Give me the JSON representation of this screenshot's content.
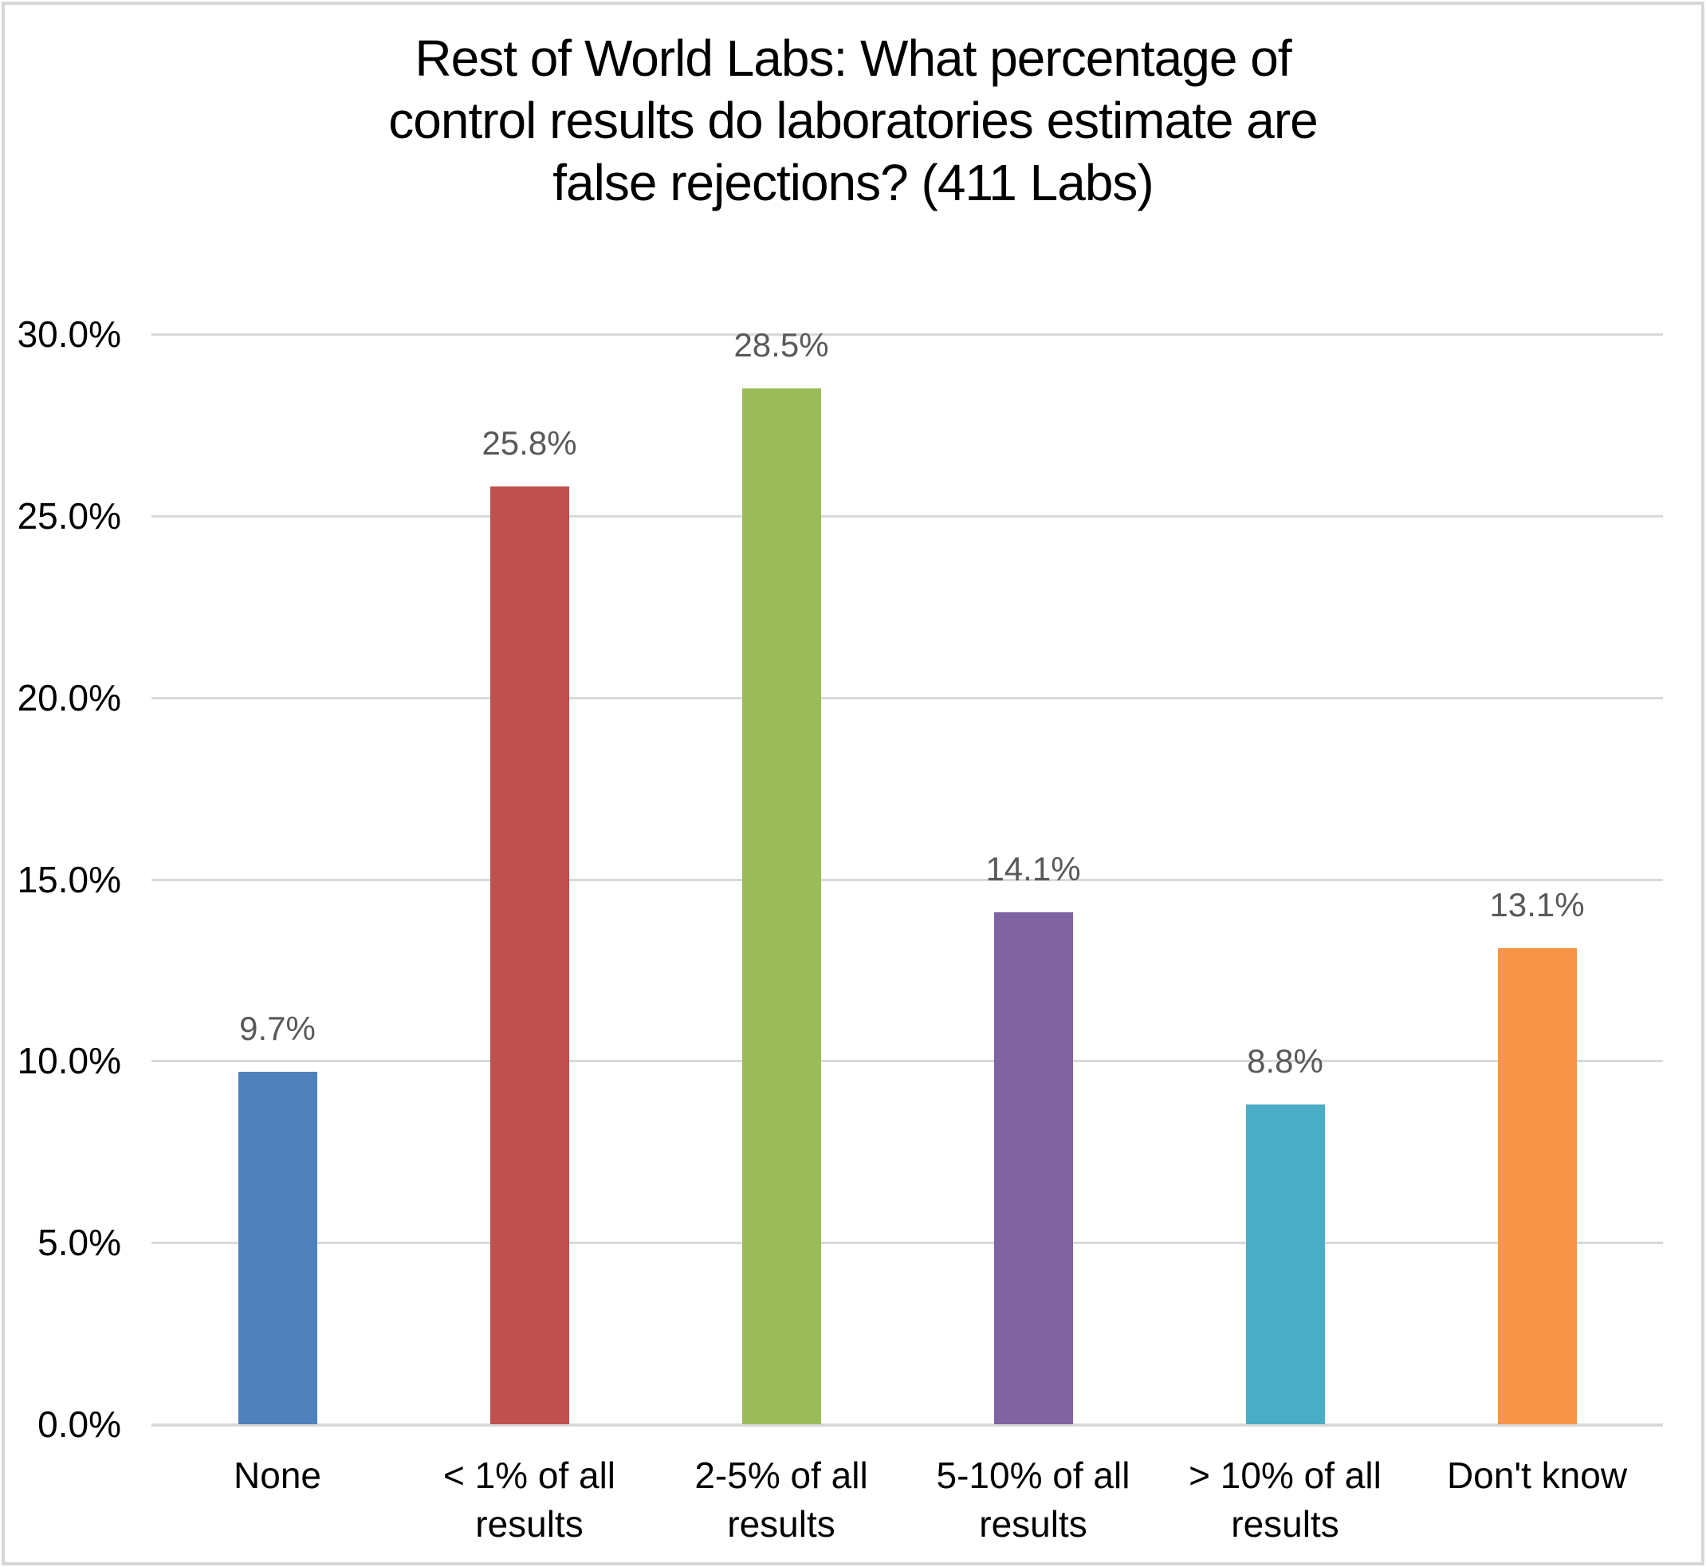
{
  "chart_data": {
    "type": "bar",
    "title": "Rest of World Labs: What percentage of control results do laboratories estimate are false rejections? (411 Labs)",
    "title_lines": [
      "Rest of World Labs: What percentage of",
      "control results do laboratories estimate are",
      "false rejections? (411 Labs)"
    ],
    "categories": [
      "None",
      "< 1% of all results",
      "2-5% of all results",
      "5-10% of all results",
      "> 10% of all results",
      "Don't know"
    ],
    "values": [
      9.7,
      25.8,
      28.5,
      14.1,
      8.8,
      13.1
    ],
    "value_labels": [
      "9.7%",
      "25.8%",
      "28.5%",
      "14.1%",
      "8.8%",
      "13.1%"
    ],
    "bar_colors": [
      "#4f81bd",
      "#c0504d",
      "#9bbb59",
      "#8064a2",
      "#4bacc6",
      "#f79646"
    ],
    "xlabel": "",
    "ylabel": "",
    "ylim": [
      0,
      30
    ],
    "ytick_step": 5,
    "ytick_labels": [
      "0.0%",
      "5.0%",
      "10.0%",
      "15.0%",
      "20.0%",
      "25.0%",
      "30.0%"
    ],
    "grid": true,
    "legend": false,
    "gridline_color": "#d9d9d9",
    "value_label_color": "#595959",
    "text_color": "#000000"
  }
}
